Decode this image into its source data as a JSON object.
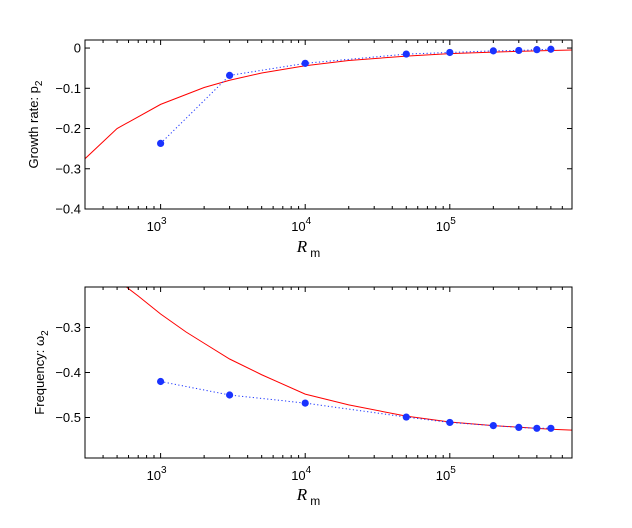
{
  "chart_data": [
    {
      "type": "line",
      "x_scale": "log",
      "xlim": [
        300,
        700000
      ],
      "ylim": [
        -0.4,
        0.02
      ],
      "xticks": [
        1000,
        10000,
        100000
      ],
      "xtick_labels": [
        {
          "base": "10",
          "exp": "3"
        },
        {
          "base": "10",
          "exp": "4"
        },
        {
          "base": "10",
          "exp": "5"
        }
      ],
      "yticks": [
        -0.4,
        -0.3,
        -0.2,
        -0.1,
        0
      ],
      "ytick_labels": [
        "−0.4",
        "−0.3",
        "−0.2",
        "−0.1",
        "0"
      ],
      "ylabel": {
        "text": "Growth rate:  p",
        "sub": "2"
      },
      "xlabel": {
        "text": "R",
        "sub": "m"
      },
      "grid": false,
      "series": [
        {
          "kind": "curve",
          "color": "#ff0000",
          "x": [
            300,
            500,
            1000,
            2000,
            3000,
            5000,
            10000,
            20000,
            50000,
            100000,
            200000,
            500000,
            700000
          ],
          "y": [
            -0.275,
            -0.2,
            -0.14,
            -0.098,
            -0.08,
            -0.062,
            -0.044,
            -0.031,
            -0.02,
            -0.014,
            -0.01,
            -0.006,
            -0.005
          ]
        },
        {
          "kind": "points",
          "color": "#1a33ff",
          "line": "dotted",
          "x": [
            1000,
            3000,
            10000,
            50000,
            100000,
            200000,
            300000,
            400000,
            500000
          ],
          "y": [
            -0.237,
            -0.068,
            -0.038,
            -0.015,
            -0.011,
            -0.007,
            -0.006,
            -0.004,
            -0.003
          ]
        }
      ]
    },
    {
      "type": "line",
      "x_scale": "log",
      "xlim": [
        300,
        700000
      ],
      "ylim": [
        -0.59,
        -0.21
      ],
      "xticks": [
        1000,
        10000,
        100000
      ],
      "xtick_labels": [
        {
          "base": "10",
          "exp": "3"
        },
        {
          "base": "10",
          "exp": "4"
        },
        {
          "base": "10",
          "exp": "5"
        }
      ],
      "yticks": [
        -0.5,
        -0.4,
        -0.3
      ],
      "ytick_labels": [
        "−0.5",
        "−0.4",
        "−0.3"
      ],
      "ylabel": {
        "text": "Frequency:  ω",
        "sub": "2"
      },
      "xlabel": {
        "text": "R",
        "sub": "m"
      },
      "grid": false,
      "series": [
        {
          "kind": "curve",
          "color": "#ff0000",
          "x": [
            580,
            700,
            1000,
            1500,
            2000,
            3000,
            5000,
            10000,
            20000,
            50000,
            100000,
            200000,
            500000,
            700000
          ],
          "y": [
            -0.21,
            -0.23,
            -0.27,
            -0.31,
            -0.335,
            -0.37,
            -0.405,
            -0.448,
            -0.472,
            -0.497,
            -0.51,
            -0.518,
            -0.526,
            -0.528
          ]
        },
        {
          "kind": "points",
          "color": "#1a33ff",
          "line": "dotted",
          "x": [
            1000,
            3000,
            10000,
            50000,
            100000,
            200000,
            300000,
            400000,
            500000
          ],
          "y": [
            -0.42,
            -0.45,
            -0.468,
            -0.499,
            -0.511,
            -0.518,
            -0.522,
            -0.524,
            -0.524
          ]
        }
      ]
    }
  ]
}
